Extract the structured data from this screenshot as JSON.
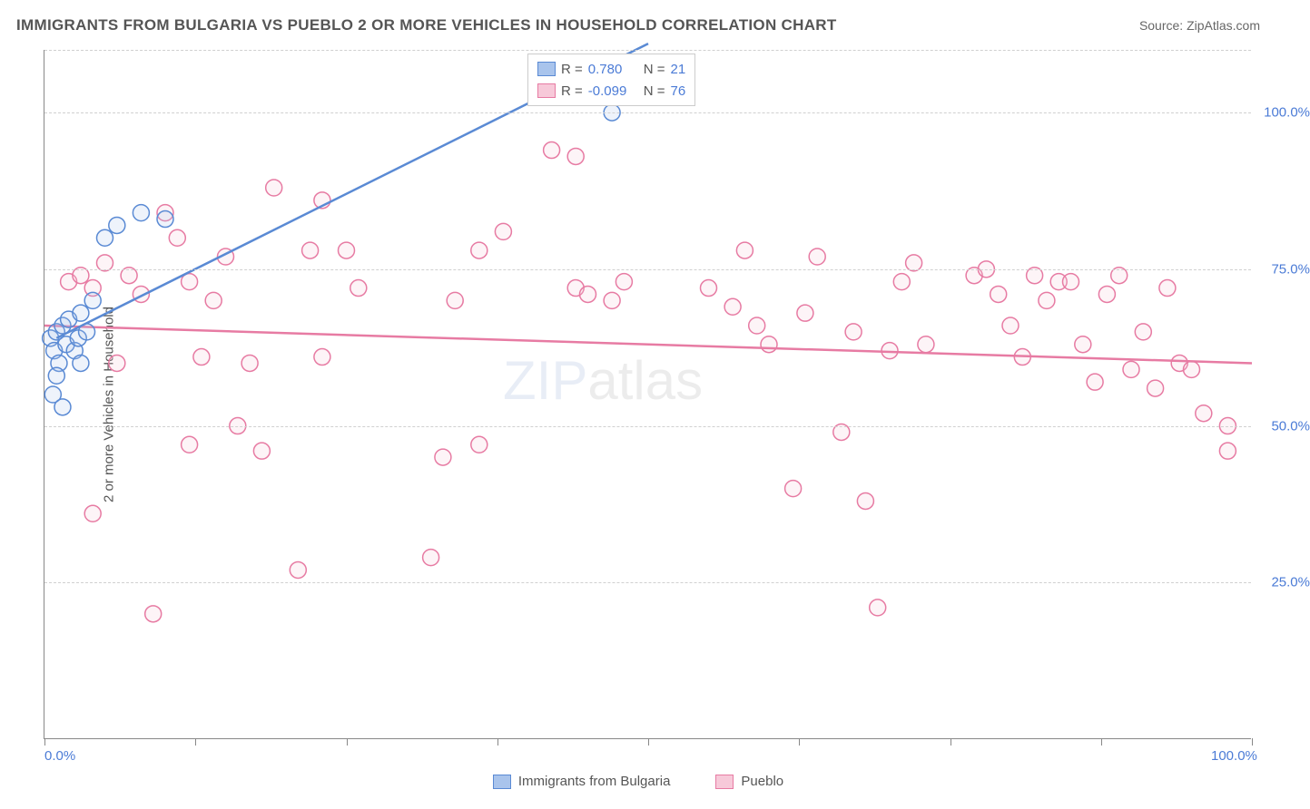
{
  "title": "IMMIGRANTS FROM BULGARIA VS PUEBLO 2 OR MORE VEHICLES IN HOUSEHOLD CORRELATION CHART",
  "source_label": "Source: ZipAtlas.com",
  "y_axis_label": "2 or more Vehicles in Household",
  "watermark": {
    "part1": "ZIP",
    "part2": "atlas"
  },
  "chart": {
    "type": "scatter",
    "background_color": "#ffffff",
    "grid_color": "#d0d0d0",
    "axis_color": "#888888",
    "tick_label_color": "#4b7bd6",
    "tick_label_fontsize": 15,
    "title_fontsize": 17,
    "title_color": "#555555",
    "xlim": [
      0,
      100
    ],
    "ylim": [
      0,
      110
    ],
    "x_ticks": [
      0,
      12.5,
      25,
      37.5,
      50,
      62.5,
      75,
      87.5,
      100
    ],
    "x_tick_labels": {
      "0": "0.0%",
      "100": "100.0%"
    },
    "y_gridlines": [
      25,
      50,
      75,
      100,
      110
    ],
    "y_tick_labels": {
      "25": "25.0%",
      "50": "50.0%",
      "75": "75.0%",
      "100": "100.0%"
    },
    "marker_radius": 9,
    "marker_stroke_width": 1.5,
    "marker_fill_opacity": 0.2
  },
  "series": {
    "bulgaria": {
      "label": "Immigrants from Bulgaria",
      "color_stroke": "#5a8ad4",
      "color_fill": "#a9c4ec",
      "R": "0.780",
      "N": "21",
      "trend": {
        "x1": 1,
        "y1": 64,
        "x2": 50,
        "y2": 111
      },
      "points": [
        [
          0.5,
          64
        ],
        [
          0.8,
          62
        ],
        [
          1.0,
          65
        ],
        [
          1.2,
          60
        ],
        [
          1.5,
          66
        ],
        [
          1.0,
          58
        ],
        [
          0.7,
          55
        ],
        [
          1.8,
          63
        ],
        [
          2.0,
          67
        ],
        [
          2.5,
          62
        ],
        [
          1.5,
          53
        ],
        [
          2.8,
          64
        ],
        [
          3.0,
          60
        ],
        [
          3.5,
          65
        ],
        [
          5.0,
          80
        ],
        [
          6.0,
          82
        ],
        [
          8.0,
          84
        ],
        [
          10.0,
          83
        ],
        [
          3.0,
          68
        ],
        [
          4.0,
          70
        ],
        [
          47,
          100
        ]
      ]
    },
    "pueblo": {
      "label": "Pueblo",
      "color_stroke": "#e77ba3",
      "color_fill": "#f7c9d9",
      "R": "-0.099",
      "N": "76",
      "trend": {
        "x1": 0,
        "y1": 66,
        "x2": 100,
        "y2": 60
      },
      "points": [
        [
          2,
          73
        ],
        [
          3,
          74
        ],
        [
          4,
          72
        ],
        [
          4,
          36
        ],
        [
          5,
          76
        ],
        [
          6,
          60
        ],
        [
          7,
          74
        ],
        [
          8,
          71
        ],
        [
          9,
          20
        ],
        [
          10,
          84
        ],
        [
          11,
          80
        ],
        [
          12,
          73
        ],
        [
          12,
          47
        ],
        [
          13,
          61
        ],
        [
          14,
          70
        ],
        [
          15,
          77
        ],
        [
          16,
          50
        ],
        [
          17,
          60
        ],
        [
          18,
          46
        ],
        [
          19,
          88
        ],
        [
          21,
          27
        ],
        [
          22,
          78
        ],
        [
          23,
          86
        ],
        [
          23,
          61
        ],
        [
          25,
          78
        ],
        [
          26,
          72
        ],
        [
          32,
          29
        ],
        [
          33,
          45
        ],
        [
          34,
          70
        ],
        [
          36,
          78
        ],
        [
          36,
          47
        ],
        [
          38,
          81
        ],
        [
          42,
          94
        ],
        [
          44,
          93
        ],
        [
          44,
          72
        ],
        [
          45,
          71
        ],
        [
          47,
          70
        ],
        [
          48,
          73
        ],
        [
          55,
          72
        ],
        [
          57,
          69
        ],
        [
          58,
          78
        ],
        [
          59,
          66
        ],
        [
          60,
          63
        ],
        [
          62,
          40
        ],
        [
          63,
          68
        ],
        [
          64,
          77
        ],
        [
          66,
          49
        ],
        [
          67,
          65
        ],
        [
          68,
          38
        ],
        [
          69,
          21
        ],
        [
          70,
          62
        ],
        [
          71,
          73
        ],
        [
          72,
          76
        ],
        [
          73,
          63
        ],
        [
          77,
          74
        ],
        [
          78,
          75
        ],
        [
          79,
          71
        ],
        [
          80,
          66
        ],
        [
          81,
          61
        ],
        [
          82,
          74
        ],
        [
          83,
          70
        ],
        [
          84,
          73
        ],
        [
          85,
          73
        ],
        [
          86,
          63
        ],
        [
          87,
          57
        ],
        [
          88,
          71
        ],
        [
          89,
          74
        ],
        [
          90,
          59
        ],
        [
          91,
          65
        ],
        [
          92,
          56
        ],
        [
          93,
          72
        ],
        [
          94,
          60
        ],
        [
          95,
          59
        ],
        [
          96,
          52
        ],
        [
          98,
          50
        ],
        [
          98,
          46
        ]
      ]
    }
  },
  "legend_top": {
    "R_prefix": "R = ",
    "N_prefix": "N = ",
    "value_color": "#4b7bd6",
    "text_color": "#555555"
  }
}
